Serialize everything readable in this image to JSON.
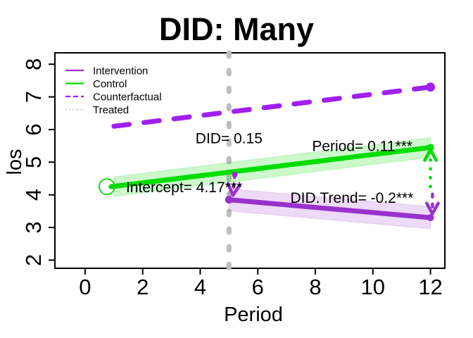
{
  "figure": {
    "background": "#FFFFFF"
  },
  "chart_data": {
    "type": "line",
    "title": "DID: Many",
    "xlabel": "Period",
    "ylabel": "los",
    "xlim": [
      -1.05,
      12.5
    ],
    "ylim": [
      1.75,
      8.35
    ],
    "xticks": [
      0,
      2,
      4,
      6,
      8,
      10,
      12
    ],
    "yticks": [
      2,
      3,
      4,
      5,
      6,
      7,
      8
    ],
    "grid": false,
    "legend": {
      "position": "top-left",
      "items": [
        {
          "label": "Intervention",
          "color": "#9932CC",
          "style": "solid"
        },
        {
          "label": "Control",
          "color": "#00DD00",
          "style": "solid"
        },
        {
          "label": "Counterfactual",
          "color": "#A020F0",
          "style": "dashed"
        },
        {
          "label": "Treated",
          "color": "#C8C8C8",
          "style": "dotted"
        }
      ]
    },
    "vline": {
      "x": 5,
      "color": "#BEBEBE",
      "style": "dashed"
    },
    "series": [
      {
        "name": "Counterfactual",
        "color": "#A020F0",
        "style": "dashed",
        "width": 7,
        "points": [
          [
            1,
            6.1
          ],
          [
            12,
            7.3
          ]
        ],
        "end_dot": true
      },
      {
        "name": "Control",
        "color": "#00DD00",
        "style": "solid",
        "width": 7,
        "points": [
          [
            1,
            4.25
          ],
          [
            12,
            5.45
          ]
        ],
        "band_halfwidth": 0.3,
        "band_color": "rgba(0,220,0,0.2)",
        "start_open_circle": true,
        "end_dot": true
      },
      {
        "name": "Intervention",
        "color": "#9932CC",
        "style": "solid",
        "width": 7,
        "points": [
          [
            5,
            3.85
          ],
          [
            12,
            3.3
          ]
        ],
        "band_halfwidth": 0.34,
        "band_color": "rgba(153,50,204,0.18)",
        "start_dot": true,
        "end_dot": true
      }
    ],
    "arrows": [
      {
        "name": "period-effect-arrow",
        "color": "#00DD00",
        "style": "dotted",
        "from": [
          12,
          4.25
        ],
        "to": [
          12,
          5.38
        ],
        "head": "end"
      },
      {
        "name": "did-trend-arrow",
        "color": "#9932CC",
        "style": "dashed",
        "from": [
          12.07,
          4.02
        ],
        "to": [
          12.07,
          3.42
        ],
        "head": "end"
      },
      {
        "name": "did-gap-arrow",
        "color": "#9932CC",
        "style": "dashed",
        "from": [
          5.2,
          4.62
        ],
        "to": [
          5.14,
          3.99
        ],
        "head": "end",
        "start_dot": true
      }
    ],
    "annotations": [
      {
        "name": "did-annotation",
        "text": "DID= 0.15",
        "x": 5.0,
        "y": 5.74
      },
      {
        "name": "period-annotation",
        "text": "Period= 0.11***",
        "x": 9.63,
        "y": 5.5
      },
      {
        "name": "intercept-annotation",
        "text": "Intercept= 4.17***",
        "x": 3.44,
        "y": 4.24
      },
      {
        "name": "did-trend-annotation",
        "text": "DID.Trend= -0.2***",
        "x": 9.27,
        "y": 3.91
      }
    ]
  }
}
